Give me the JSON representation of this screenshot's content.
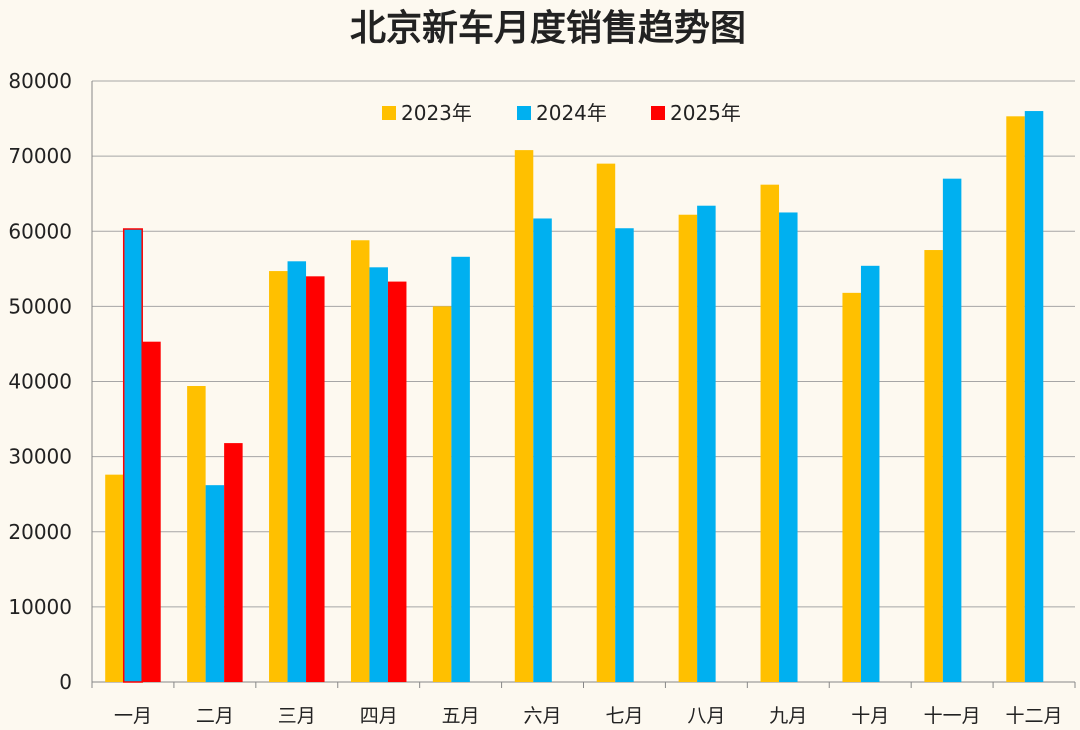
{
  "chart_data": {
    "type": "bar",
    "title": "北京新车月度销售趋势图",
    "categories": [
      "一月",
      "二月",
      "三月",
      "四月",
      "五月",
      "六月",
      "七月",
      "八月",
      "九月",
      "十月",
      "十一月",
      "十二月"
    ],
    "series": [
      {
        "name": "2023年",
        "color": "#ffc000",
        "values": [
          27600,
          39400,
          54700,
          58800,
          50000,
          70800,
          69000,
          62200,
          66200,
          51800,
          57500,
          75300
        ]
      },
      {
        "name": "2024年",
        "color": "#00b0f0",
        "values": [
          60300,
          26200,
          56000,
          55200,
          56600,
          61700,
          60400,
          63400,
          62500,
          55400,
          67000,
          76000
        ]
      },
      {
        "name": "2025年",
        "color": "#ff0000",
        "values": [
          45300,
          31800,
          54000,
          53300,
          null,
          null,
          null,
          null,
          null,
          null,
          null,
          null
        ]
      }
    ],
    "ylim": [
      0,
      80000
    ],
    "yticks": [
      0,
      10000,
      20000,
      30000,
      40000,
      50000,
      60000,
      70000,
      80000
    ],
    "grid": true,
    "legend": "top-center",
    "highlight": {
      "series": "2024年",
      "category": "一月",
      "outline_color": "#ff0000"
    }
  }
}
